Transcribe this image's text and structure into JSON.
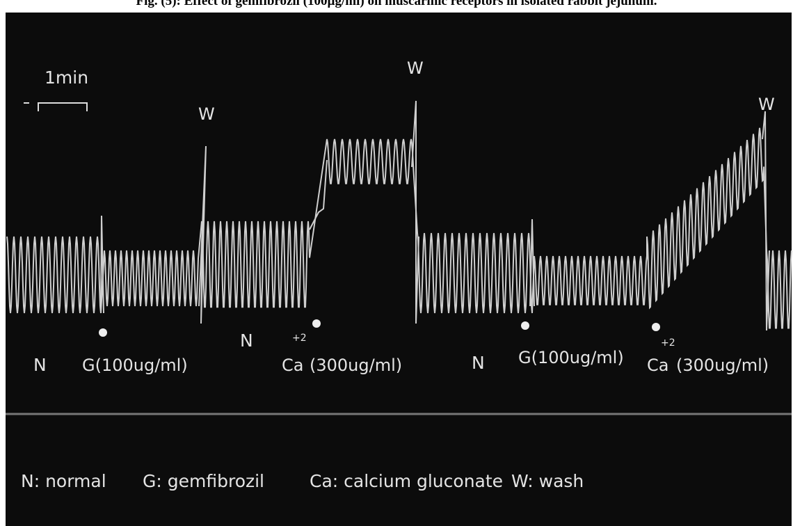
{
  "caption": "Fig. (5): Effect of gemfibrozil (100µg/ml) on muscarinic receptors in isolated rabbit jejunum.",
  "scale_bar": {
    "label": "1min"
  },
  "annotations": {
    "wash": [
      "W",
      "W",
      "W"
    ],
    "normal": [
      "N",
      "N",
      "N"
    ],
    "gemfibrozil": [
      "G(100ug/ml)",
      "G(100ug/ml)"
    ],
    "calcium": [
      {
        "ion": "Ca",
        "charge": "+2",
        "dose": "(300ug/ml)"
      },
      {
        "ion": "Ca",
        "charge": "+2",
        "dose": "(300ug/ml)"
      }
    ]
  },
  "legend": [
    "N: normal",
    "G: gemfibrozil",
    "Ca: calcium gluconate",
    "W: wash"
  ]
}
